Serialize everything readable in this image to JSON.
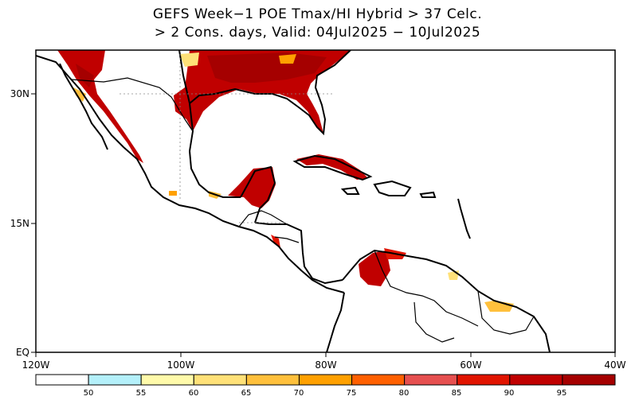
{
  "title": {
    "line1": "GEFS Week−1 POE Tmax/HI Hybrid > 37 Celc.",
    "line2": "> 2 Cons. days, Valid: 04Jul2025 − 10Jul2025"
  },
  "axes": {
    "x_ticks": [
      "120W",
      "100W",
      "80W",
      "60W",
      "40W"
    ],
    "y_ticks": [
      "30N",
      "15N",
      "EQ"
    ]
  },
  "colorbar": {
    "labels": [
      "50",
      "55",
      "60",
      "65",
      "70",
      "75",
      "80",
      "85",
      "90",
      "95"
    ],
    "colors": [
      "#ffffff",
      "#b4f0fa",
      "#fffaaa",
      "#ffe178",
      "#ffc03c",
      "#ffa000",
      "#ff6000",
      "#e65050",
      "#e11400",
      "#c00000",
      "#a50000"
    ]
  }
}
